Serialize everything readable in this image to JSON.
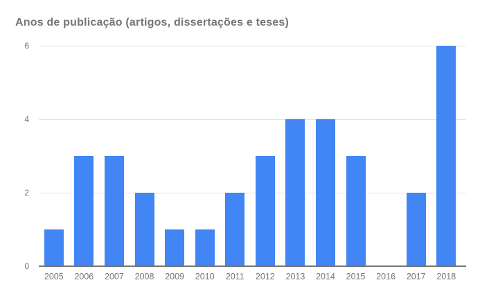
{
  "chart_data": {
    "type": "bar",
    "title": "Anos de publicação (artigos, dissertações e teses)",
    "categories": [
      "2005",
      "2006",
      "2007",
      "2008",
      "2009",
      "2010",
      "2011",
      "2012",
      "2013",
      "2014",
      "2015",
      "2016",
      "2017",
      "2018"
    ],
    "values": [
      1,
      3,
      3,
      2,
      1,
      1,
      2,
      3,
      4,
      4,
      3,
      0,
      2,
      6
    ],
    "xlabel": "",
    "ylabel": "",
    "ylim": [
      0,
      6
    ],
    "yticks": [
      0,
      2,
      4,
      6
    ],
    "grid": true,
    "legend_position": "none",
    "colors": {
      "bar": "#4285f4",
      "title_text": "#757575",
      "tick_label_text": "#757575",
      "gridline": "#e3e3e3",
      "baseline": "#757575",
      "background": "#ffffff"
    }
  }
}
